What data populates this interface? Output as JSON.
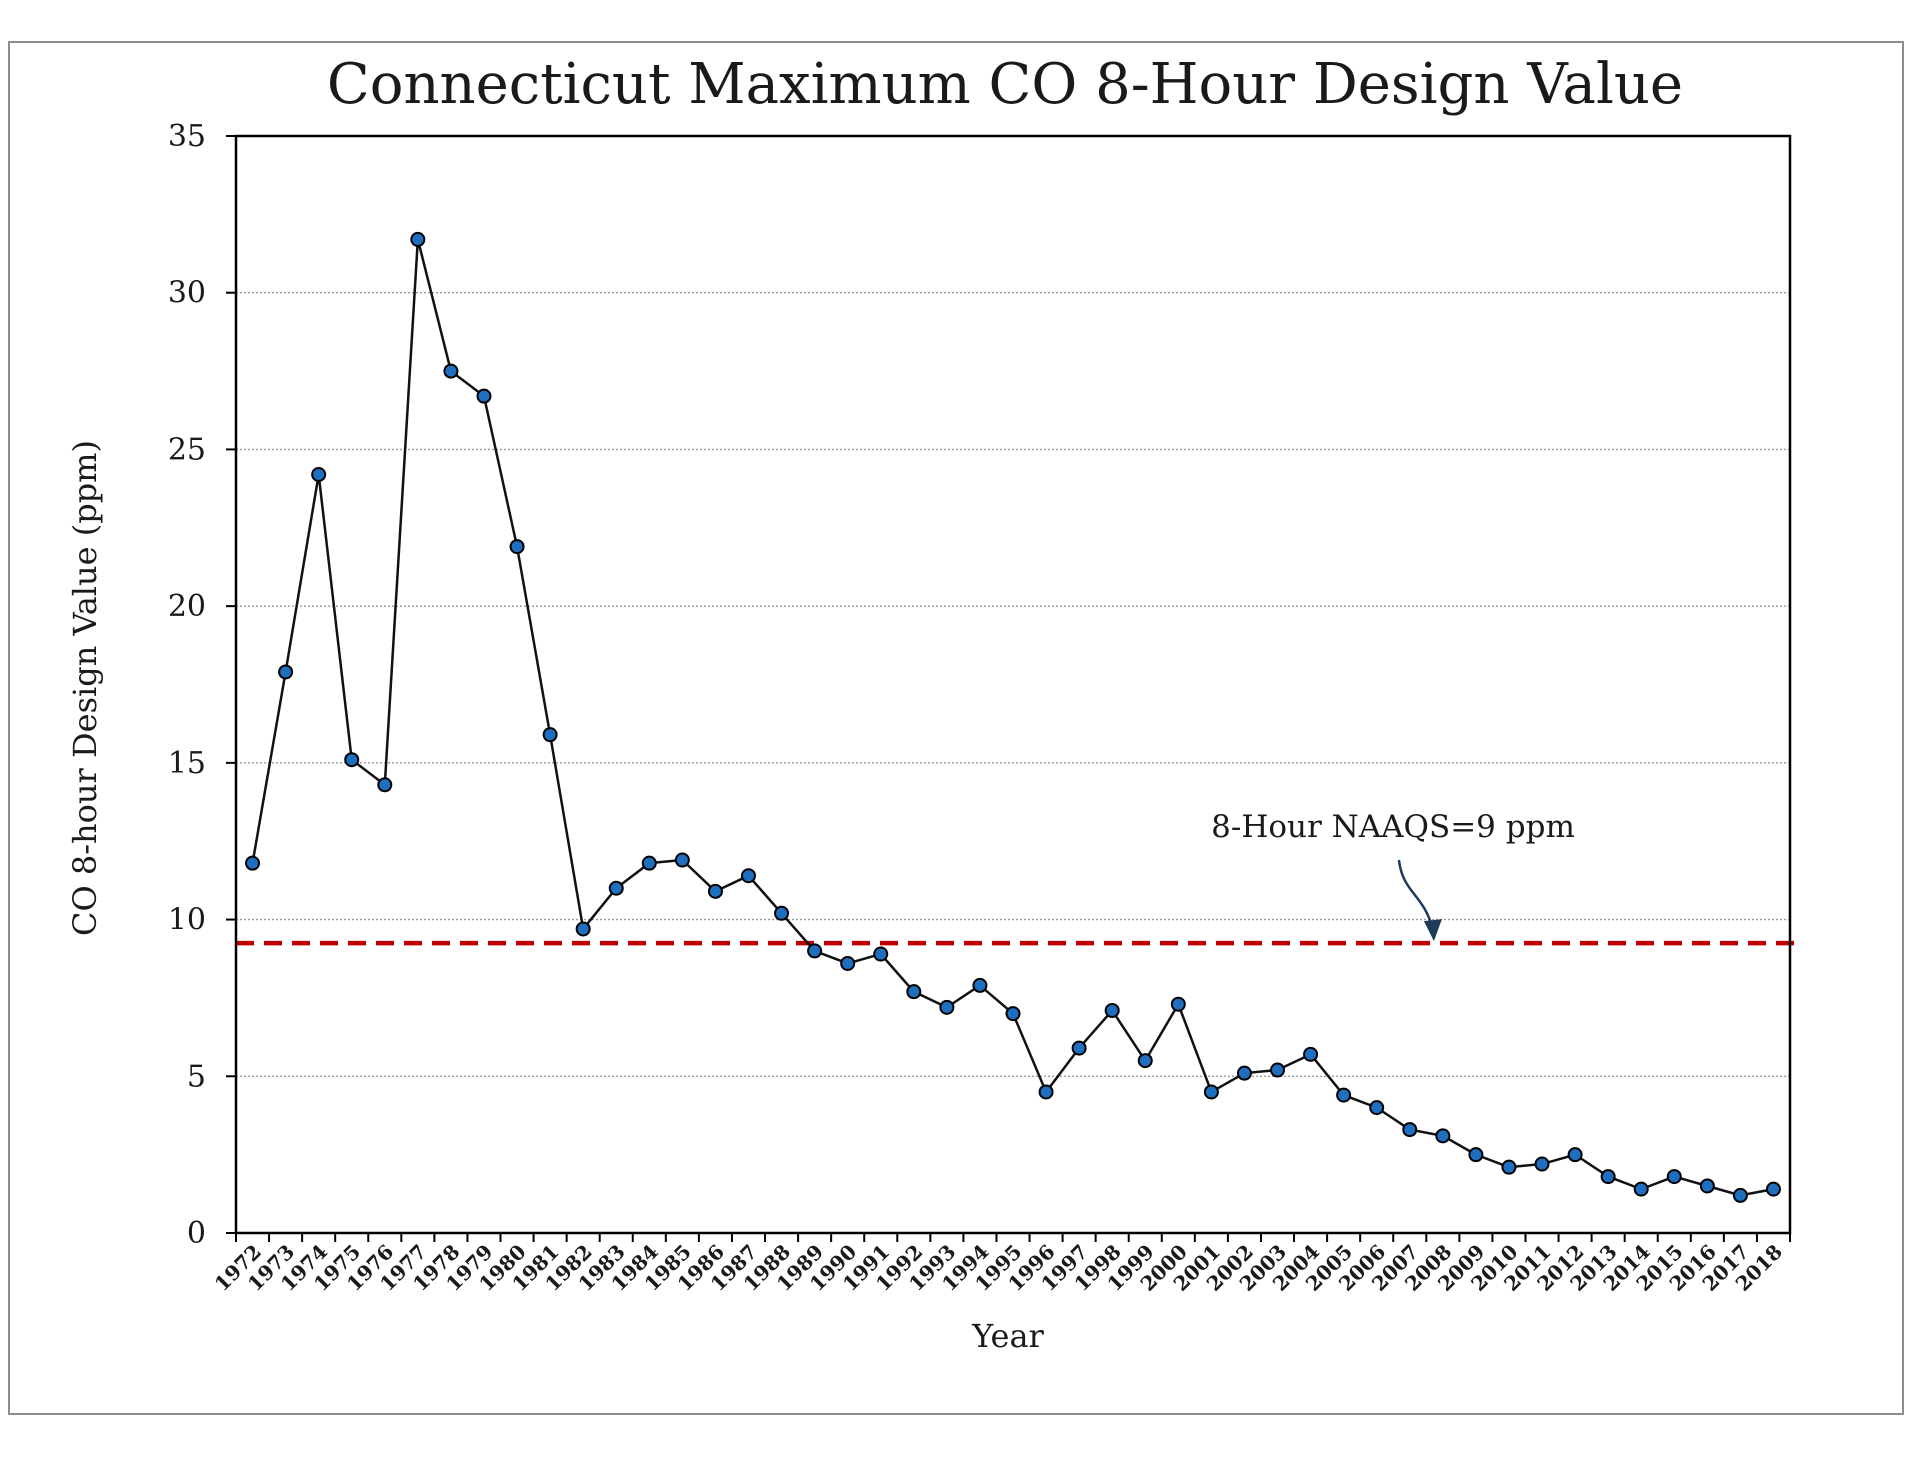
{
  "chart_data": {
    "type": "line",
    "title": "Connecticut Maximum CO 8-Hour Design Value",
    "xlabel": "Year",
    "ylabel": "CO 8-hour Design Value (ppm)",
    "ylim": [
      0,
      35
    ],
    "yticks": [
      0,
      5,
      10,
      15,
      20,
      25,
      30,
      35
    ],
    "grid": true,
    "legend": "none",
    "categories": [
      "1972",
      "1973",
      "1974",
      "1975",
      "1976",
      "1977",
      "1978",
      "1979",
      "1980",
      "1981",
      "1982",
      "1983",
      "1984",
      "1985",
      "1986",
      "1987",
      "1988",
      "1989",
      "1990",
      "1991",
      "1992",
      "1993",
      "1994",
      "1995",
      "1996",
      "1997",
      "1998",
      "1999",
      "2000",
      "2001",
      "2002",
      "2003",
      "2004",
      "2005",
      "2006",
      "2007",
      "2008",
      "2009",
      "2010",
      "2011",
      "2012",
      "2013",
      "2014",
      "2015",
      "2016",
      "2017",
      "2018"
    ],
    "series": [
      {
        "values": [
          11.8,
          17.9,
          24.2,
          15.1,
          14.3,
          31.7,
          27.5,
          26.7,
          21.9,
          15.9,
          9.7,
          11.0,
          11.8,
          11.9,
          10.9,
          11.4,
          10.2,
          9.0,
          8.6,
          8.9,
          7.7,
          7.2,
          7.9,
          7.0,
          4.5,
          5.9,
          7.1,
          5.5,
          7.3,
          4.5,
          5.1,
          5.2,
          5.7,
          4.4,
          4.0,
          3.3,
          3.1,
          2.5,
          2.1,
          2.2,
          2.5,
          1.8,
          1.4,
          1.8,
          1.5,
          1.2,
          1.4
        ],
        "line_color": "#111111",
        "marker_color": "#1f6fc0"
      }
    ],
    "reference_line": {
      "value": 9.25,
      "label": "8-Hour NAAQS=9 ppm",
      "color": "#c00000",
      "style": "dashed"
    },
    "annotation_arrow_color": "#1f3b5a"
  }
}
